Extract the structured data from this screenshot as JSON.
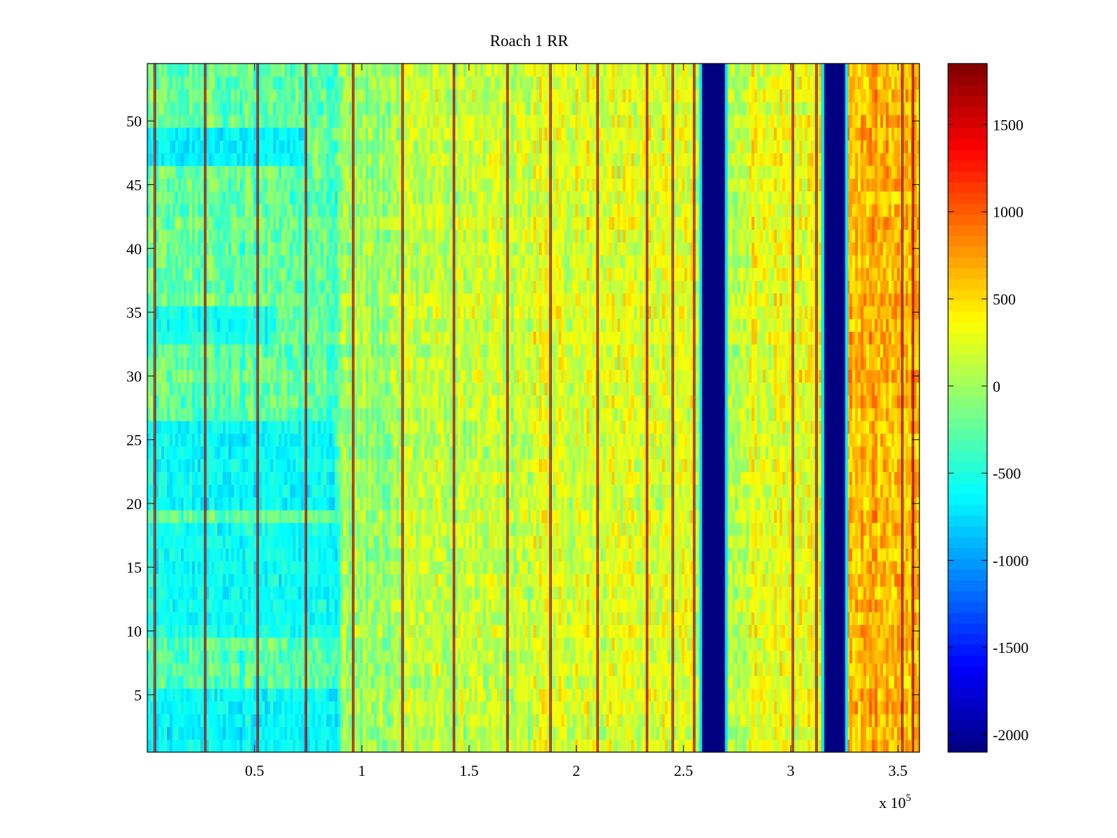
{
  "chart_data": {
    "type": "heatmap",
    "title": "Roach 1 RR",
    "xlabel": "",
    "ylabel": "",
    "x_multiplier_label": "x 10",
    "x_multiplier_exponent": "5",
    "xlim": [
      0,
      360000
    ],
    "ylim": [
      0.5,
      54.5
    ],
    "x_ticks": [
      {
        "value": 50000,
        "label": "0.5"
      },
      {
        "value": 100000,
        "label": "1"
      },
      {
        "value": 150000,
        "label": "1.5"
      },
      {
        "value": 200000,
        "label": "2"
      },
      {
        "value": 250000,
        "label": "2.5"
      },
      {
        "value": 300000,
        "label": "3"
      },
      {
        "value": 350000,
        "label": "3.5"
      }
    ],
    "y_ticks": [
      {
        "value": 5,
        "label": "5"
      },
      {
        "value": 10,
        "label": "10"
      },
      {
        "value": 15,
        "label": "15"
      },
      {
        "value": 20,
        "label": "20"
      },
      {
        "value": 25,
        "label": "25"
      },
      {
        "value": 30,
        "label": "30"
      },
      {
        "value": 35,
        "label": "35"
      },
      {
        "value": 40,
        "label": "40"
      },
      {
        "value": 45,
        "label": "45"
      },
      {
        "value": 50,
        "label": "50"
      }
    ],
    "colorbar": {
      "colormap": "jet",
      "clim": [
        -2100,
        1850
      ],
      "ticks": [
        {
          "value": 1500,
          "label": "1500"
        },
        {
          "value": 1000,
          "label": "1000"
        },
        {
          "value": 500,
          "label": "500"
        },
        {
          "value": 0,
          "label": "0"
        },
        {
          "value": -500,
          "label": "-500"
        },
        {
          "value": -1000,
          "label": "-1000"
        },
        {
          "value": -1500,
          "label": "-1500"
        },
        {
          "value": -2000,
          "label": "-2000"
        }
      ]
    },
    "rows": 54,
    "baseline_segments": [
      {
        "x0": 0,
        "x1": 90000,
        "value": -250
      },
      {
        "x0": 90000,
        "x1": 120000,
        "value": 0
      },
      {
        "x0": 120000,
        "x1": 180000,
        "value": 150
      },
      {
        "x0": 180000,
        "x1": 255000,
        "value": 250
      },
      {
        "x0": 255000,
        "x1": 280000,
        "value": 150
      },
      {
        "x0": 280000,
        "x1": 315000,
        "value": 300
      },
      {
        "x0": 325000,
        "x1": 360000,
        "value": 650
      }
    ],
    "dead_bands": [
      {
        "x0": 258000,
        "x1": 270000,
        "value": -2100
      },
      {
        "x0": 315000,
        "x1": 326000,
        "value": -2100
      }
    ],
    "cool_row_bands": [
      {
        "row0": 1,
        "row1": 5,
        "x1": 90000,
        "value": -700
      },
      {
        "row0": 10,
        "row1": 18,
        "x1": 90000,
        "value": -600
      },
      {
        "row0": 20,
        "row1": 26,
        "x1": 88000,
        "value": -650
      },
      {
        "row0": 33,
        "row1": 35,
        "x1": 60000,
        "value": -550
      },
      {
        "row0": 47,
        "row1": 49,
        "x1": 75000,
        "value": -800
      }
    ],
    "spike_lines_x": [
      3500,
      27000,
      51500,
      74000,
      96000,
      119000,
      143000,
      168000,
      188000,
      210000,
      233000,
      245000,
      255000,
      301000,
      312000,
      352000,
      357000
    ]
  }
}
